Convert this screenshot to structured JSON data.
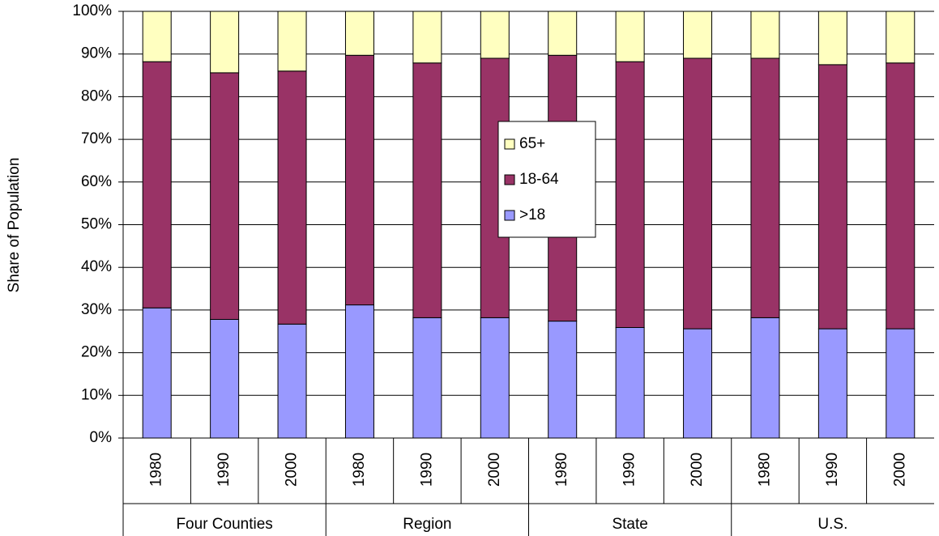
{
  "chart_data": {
    "type": "stacked_bar",
    "y_label": "Share of Population",
    "groups": [
      {
        "name": "Four Counties",
        "categories": [
          "1980",
          "1990",
          "2000"
        ]
      },
      {
        "name": "Region",
        "categories": [
          "1980",
          "1990",
          "2000"
        ]
      },
      {
        "name": "State",
        "categories": [
          "1980",
          "1990",
          "2000"
        ]
      },
      {
        "name": "U.S.",
        "categories": [
          "1980",
          "1990",
          "2000"
        ]
      }
    ],
    "series": [
      {
        "name": ">18",
        "color": "#9999ff",
        "values": [
          30.5,
          27.8,
          26.7,
          31.2,
          28.2,
          28.2,
          27.4,
          25.9,
          25.6,
          28.2,
          25.6,
          25.6
        ]
      },
      {
        "name": "18-64",
        "color": "#993366",
        "values": [
          57.7,
          57.8,
          59.3,
          58.5,
          59.7,
          60.8,
          62.3,
          62.3,
          63.4,
          60.8,
          61.9,
          62.3
        ]
      },
      {
        "name": "65+",
        "color": "#ffffc0",
        "values": [
          11.8,
          14.4,
          14.0,
          10.3,
          12.1,
          11.0,
          10.3,
          11.8,
          11.0,
          11.0,
          12.5,
          12.1
        ]
      }
    ],
    "ylim": [
      0,
      100
    ],
    "yticks": [
      {
        "value": 0,
        "label": "0%"
      },
      {
        "value": 10,
        "label": "10%"
      },
      {
        "value": 20,
        "label": "20%"
      },
      {
        "value": 30,
        "label": "30%"
      },
      {
        "value": 40,
        "label": "40%"
      },
      {
        "value": 50,
        "label": "50%"
      },
      {
        "value": 60,
        "label": "60%"
      },
      {
        "value": 70,
        "label": "70%"
      },
      {
        "value": 80,
        "label": "80%"
      },
      {
        "value": 90,
        "label": "90%"
      },
      {
        "value": 100,
        "label": "100%"
      }
    ],
    "grid": true,
    "legend": "center"
  }
}
